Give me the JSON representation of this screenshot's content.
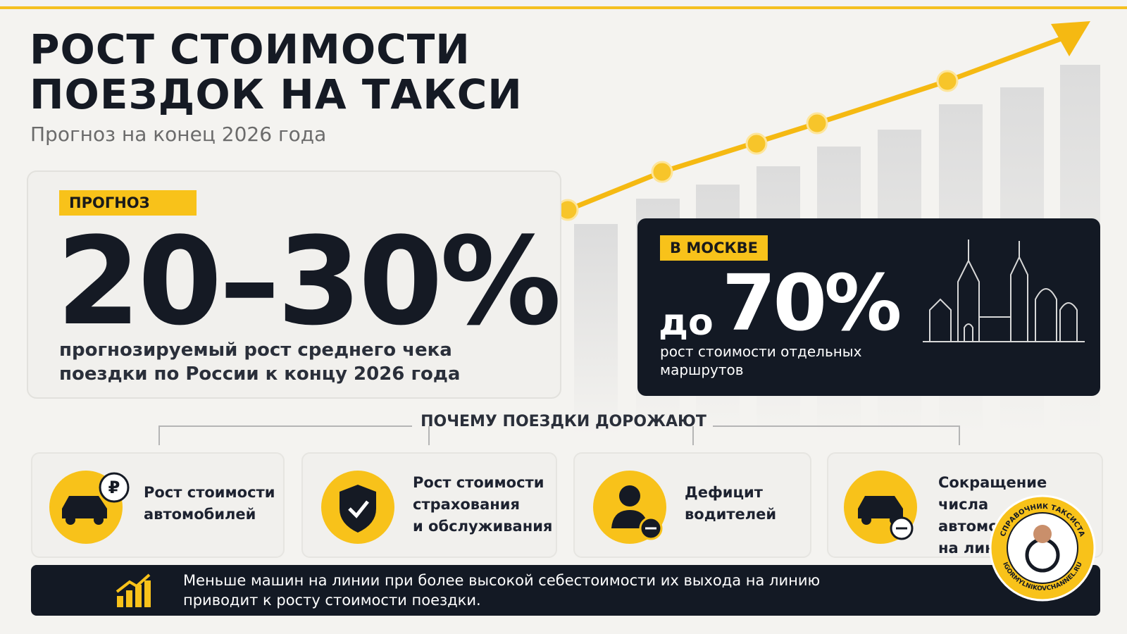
{
  "header": {
    "title_lines": [
      "РОСТ СТОИМОСТИ",
      "ПОЕЗДОК НА ТАКСИ"
    ],
    "subtitle": "Прогноз на конец 2026 года"
  },
  "forecast": {
    "badge": "ПРОГНОЗ",
    "value": "20–30%",
    "description_lines": [
      "прогнозируемый рост среднего чека",
      "поездки по России к концу 2026 года"
    ]
  },
  "moscow": {
    "badge": "В МОСКВЕ",
    "prefix": "до",
    "value": "70%",
    "description_lines": [
      "рост стоимости отдельных",
      "маршрутов"
    ]
  },
  "reasons": {
    "title": "ПОЧЕМУ ПОЕЗДКИ ДОРОЖАЮТ",
    "items": [
      {
        "lines": [
          "Рост стоимости",
          "автомобилей"
        ]
      },
      {
        "lines": [
          "Рост стоимости",
          "страхования",
          "и обслуживания"
        ]
      },
      {
        "lines": [
          "Дефицит",
          "водителей"
        ]
      },
      {
        "lines": [
          "Сокращение числа",
          "автомобилей",
          "на линии"
        ]
      }
    ]
  },
  "note": {
    "lines": [
      "Меньше машин на линии при более высокой себестоимости их выхода на линию",
      "приводит к росту стоимости поездки."
    ]
  },
  "watermark": {
    "top": "СПРАВОЧНИК ТАКСИСТА",
    "bottom": "IGORMYLNIKOVCHANNEL.RU"
  }
}
